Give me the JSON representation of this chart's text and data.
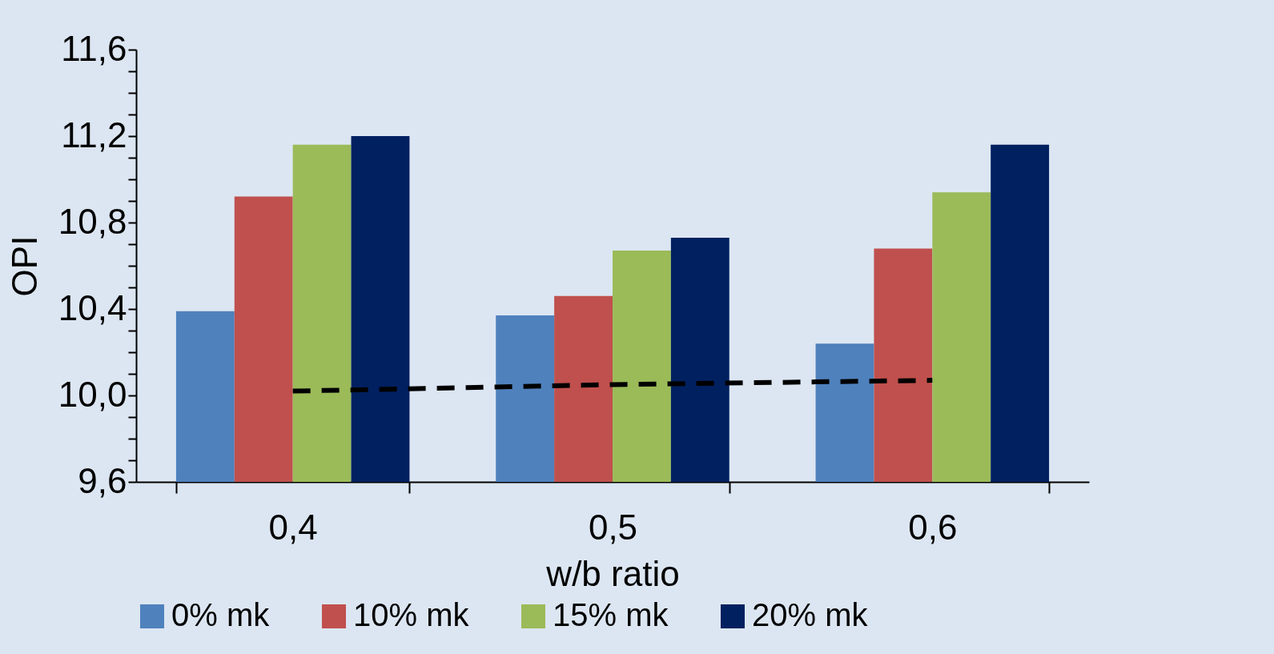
{
  "chart_data": {
    "type": "bar",
    "xlabel": "w/b ratio",
    "ylabel": "OPI",
    "categories": [
      "0,4",
      "0,5",
      "0,6"
    ],
    "series": [
      {
        "name": "0% mk",
        "color": "#4f81bd",
        "values": [
          10.39,
          10.37,
          10.24
        ]
      },
      {
        "name": "10% mk",
        "color": "#c0504d",
        "values": [
          10.92,
          10.46,
          10.68
        ]
      },
      {
        "name": "15% mk",
        "color": "#9bbb59",
        "values": [
          11.16,
          10.67,
          10.94
        ]
      },
      {
        "name": "20% mk",
        "color": "#002060",
        "values": [
          11.2,
          10.73,
          11.16
        ]
      },
      {
        "type": "line",
        "color": "#000000",
        "line_style": "dashed",
        "values": [
          10.02,
          10.05,
          10.07
        ]
      }
    ],
    "ylim": [
      9.6,
      11.6
    ],
    "yticks": [
      {
        "value": 9.6,
        "label": "9,6"
      },
      {
        "value": 9.7,
        "label": null
      },
      {
        "value": 9.8,
        "label": null
      },
      {
        "value": 9.9,
        "label": null
      },
      {
        "value": 10,
        "label": "10,0"
      },
      {
        "value": 10.1,
        "label": null
      },
      {
        "value": 10.2,
        "label": null
      },
      {
        "value": 10.3,
        "label": null
      },
      {
        "value": 10.4,
        "label": "10,4"
      },
      {
        "value": 10.5,
        "label": null
      },
      {
        "value": 10.6,
        "label": null
      },
      {
        "value": 10.7,
        "label": null
      },
      {
        "value": 10.8,
        "label": "10,8"
      },
      {
        "value": 10.9,
        "label": null
      },
      {
        "value": 11,
        "label": null
      },
      {
        "value": 11.1,
        "label": null
      },
      {
        "value": 11.2,
        "label": "11,2"
      },
      {
        "value": 11.3,
        "label": null
      },
      {
        "value": 11.4,
        "label": null
      },
      {
        "value": 11.5,
        "label": null
      },
      {
        "value": 11.6,
        "label": "11,6"
      }
    ],
    "grid": false,
    "legend": "bottom"
  }
}
